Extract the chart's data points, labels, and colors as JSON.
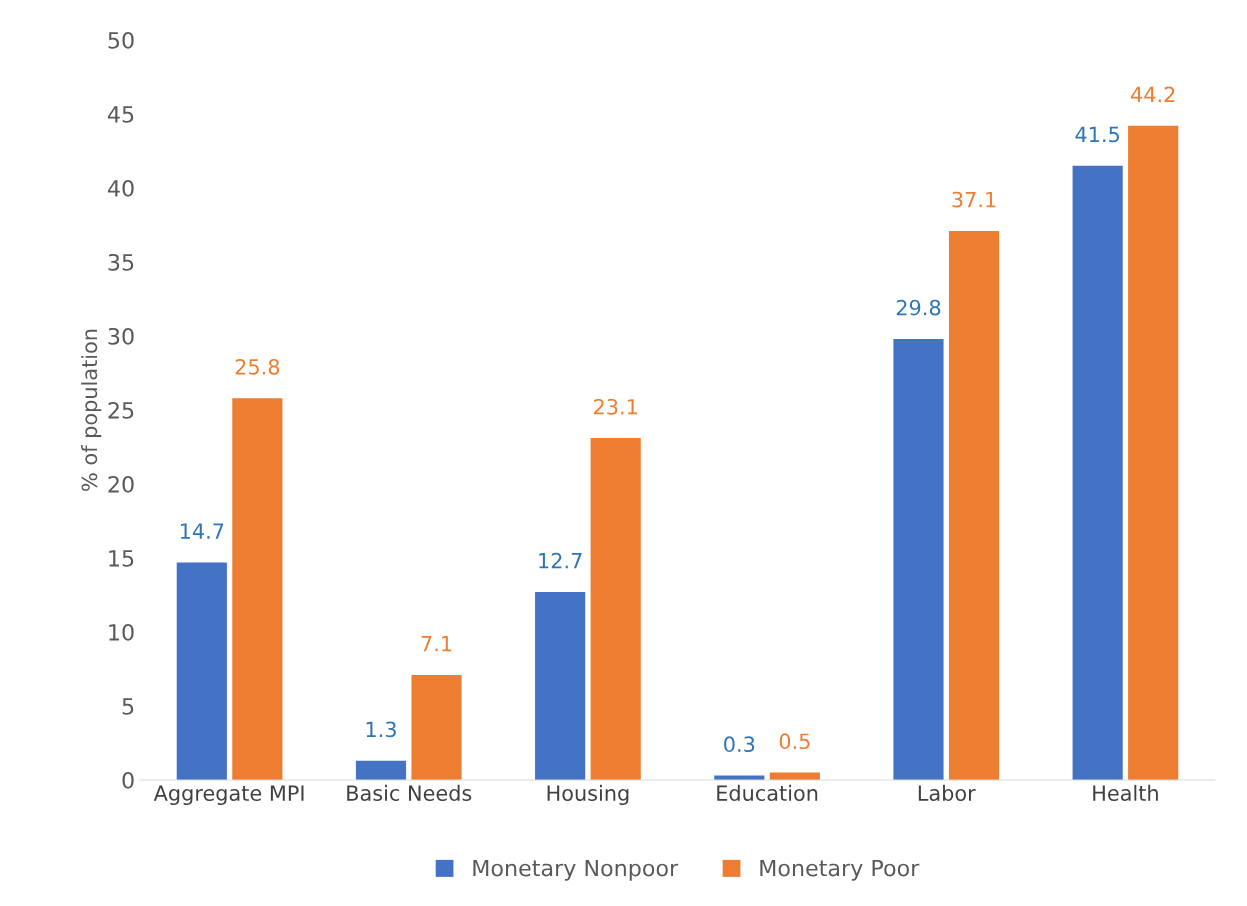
{
  "chart_data": {
    "type": "bar",
    "ylabel": "% of population",
    "categories": [
      "Aggregate MPI",
      "Basic Needs",
      "Housing",
      "Education",
      "Labor",
      "Health"
    ],
    "series": [
      {
        "name": "Monetary Nonpoor",
        "color": "#4472c4",
        "values": [
          14.7,
          1.3,
          12.7,
          0.3,
          29.8,
          41.5
        ]
      },
      {
        "name": "Monetary Poor",
        "color": "#ed7d31",
        "values": [
          25.8,
          7.1,
          23.1,
          0.5,
          37.1,
          44.2
        ]
      }
    ],
    "ylim": [
      0,
      50
    ],
    "yticks": [
      0,
      5,
      10,
      15,
      20,
      25,
      30,
      35,
      40,
      45,
      50
    ],
    "grid": false,
    "legend": "bottom",
    "data_labels": true
  }
}
